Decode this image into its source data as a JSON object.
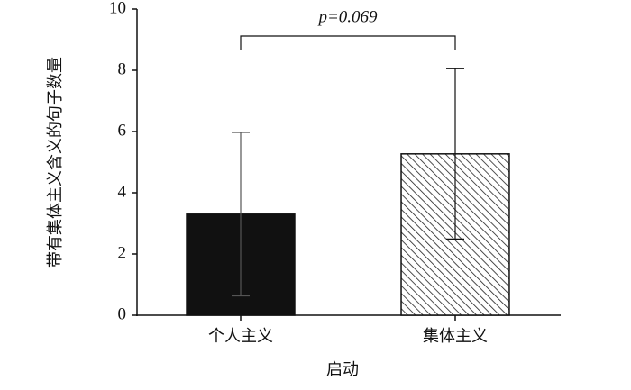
{
  "chart_data": {
    "type": "bar",
    "categories": [
      "个人主义",
      "集体主义"
    ],
    "values": [
      3.3,
      5.27
    ],
    "errors": [
      2.67,
      2.78
    ],
    "colors": [
      "#111111",
      "#ffffff"
    ],
    "patterns": [
      "solid",
      "hatch"
    ],
    "xlabel": "启动",
    "ylabel": "带有集体主义含义的句子数量",
    "annotation": "p=0.069",
    "ylim": [
      0,
      10
    ],
    "yticks": [
      0,
      2,
      4,
      6,
      8,
      10
    ],
    "grid": false
  }
}
